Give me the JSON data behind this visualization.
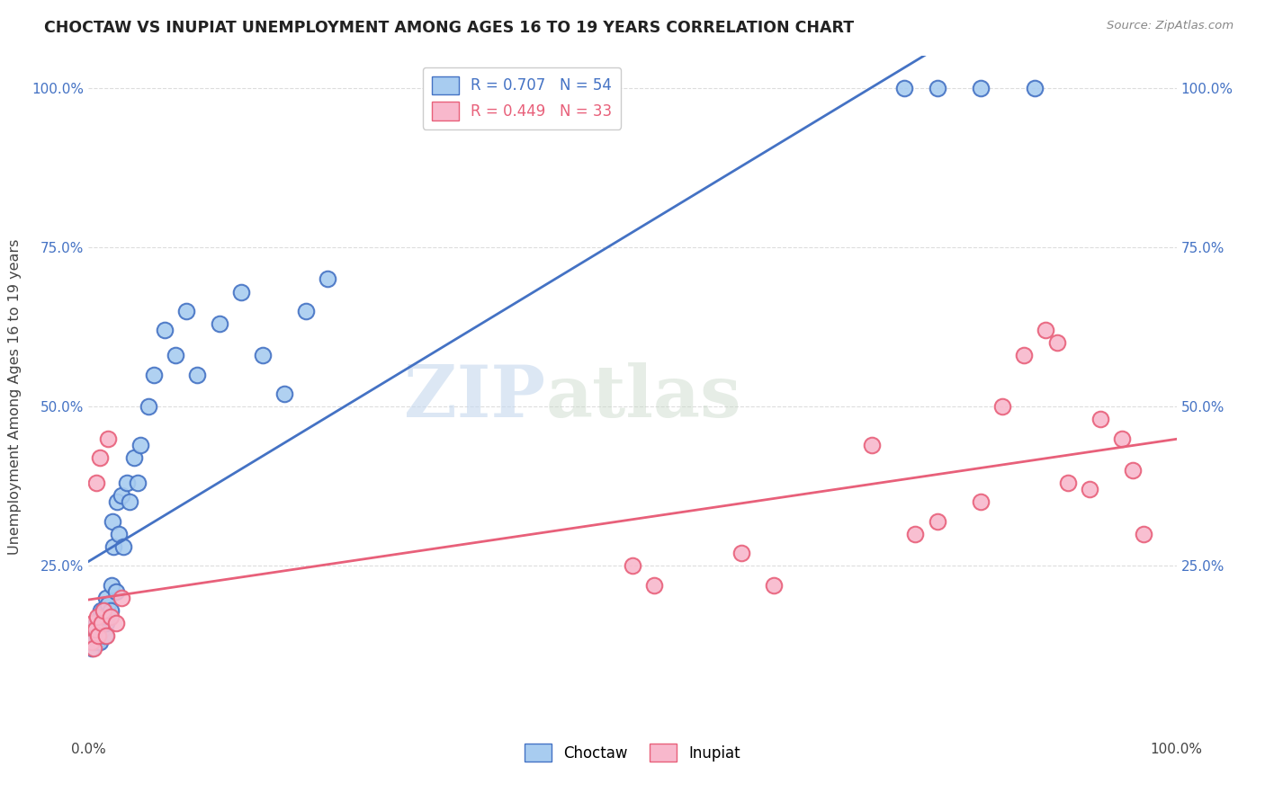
{
  "title": "CHOCTAW VS INUPIAT UNEMPLOYMENT AMONG AGES 16 TO 19 YEARS CORRELATION CHART",
  "source": "Source: ZipAtlas.com",
  "ylabel": "Unemployment Among Ages 16 to 19 years",
  "xlim": [
    0,
    1.0
  ],
  "ylim": [
    -0.02,
    1.05
  ],
  "choctaw_color": "#A8CCF0",
  "inupiat_color": "#F8B8CC",
  "choctaw_line_color": "#4472C4",
  "inupiat_line_color": "#E8607A",
  "legend_R_choctaw": "R = 0.707",
  "legend_N_choctaw": "N = 54",
  "legend_R_inupiat": "R = 0.449",
  "legend_N_inupiat": "N = 33",
  "watermark_zip": "ZIP",
  "watermark_atlas": "atlas",
  "choctaw_x": [
    0.003,
    0.003,
    0.005,
    0.006,
    0.007,
    0.007,
    0.008,
    0.008,
    0.009,
    0.009,
    0.01,
    0.01,
    0.011,
    0.011,
    0.012,
    0.013,
    0.013,
    0.014,
    0.015,
    0.015,
    0.016,
    0.016,
    0.017,
    0.018,
    0.02,
    0.021,
    0.022,
    0.023,
    0.025,
    0.026,
    0.028,
    0.03,
    0.032,
    0.035,
    0.038,
    0.042,
    0.045,
    0.048,
    0.055,
    0.06,
    0.07,
    0.08,
    0.09,
    0.1,
    0.12,
    0.14,
    0.16,
    0.18,
    0.2,
    0.22,
    0.75,
    0.78,
    0.82,
    0.87
  ],
  "choctaw_y": [
    0.12,
    0.14,
    0.13,
    0.15,
    0.14,
    0.16,
    0.13,
    0.15,
    0.14,
    0.16,
    0.13,
    0.17,
    0.16,
    0.18,
    0.16,
    0.15,
    0.17,
    0.18,
    0.14,
    0.18,
    0.16,
    0.2,
    0.17,
    0.19,
    0.18,
    0.22,
    0.32,
    0.28,
    0.21,
    0.35,
    0.3,
    0.36,
    0.28,
    0.38,
    0.35,
    0.42,
    0.38,
    0.44,
    0.5,
    0.55,
    0.62,
    0.58,
    0.65,
    0.55,
    0.63,
    0.68,
    0.58,
    0.52,
    0.65,
    0.7,
    1.0,
    1.0,
    1.0,
    1.0
  ],
  "inupiat_x": [
    0.003,
    0.004,
    0.005,
    0.006,
    0.007,
    0.008,
    0.009,
    0.01,
    0.012,
    0.014,
    0.016,
    0.018,
    0.02,
    0.025,
    0.03,
    0.5,
    0.52,
    0.6,
    0.63,
    0.72,
    0.76,
    0.78,
    0.82,
    0.84,
    0.86,
    0.88,
    0.89,
    0.9,
    0.92,
    0.93,
    0.95,
    0.96,
    0.97
  ],
  "inupiat_y": [
    0.13,
    0.16,
    0.12,
    0.15,
    0.38,
    0.17,
    0.14,
    0.42,
    0.16,
    0.18,
    0.14,
    0.45,
    0.17,
    0.16,
    0.2,
    0.25,
    0.22,
    0.27,
    0.22,
    0.44,
    0.3,
    0.32,
    0.35,
    0.5,
    0.58,
    0.62,
    0.6,
    0.38,
    0.37,
    0.48,
    0.45,
    0.4,
    0.3
  ],
  "background_color": "#FFFFFF",
  "grid_color": "#DDDDDD"
}
